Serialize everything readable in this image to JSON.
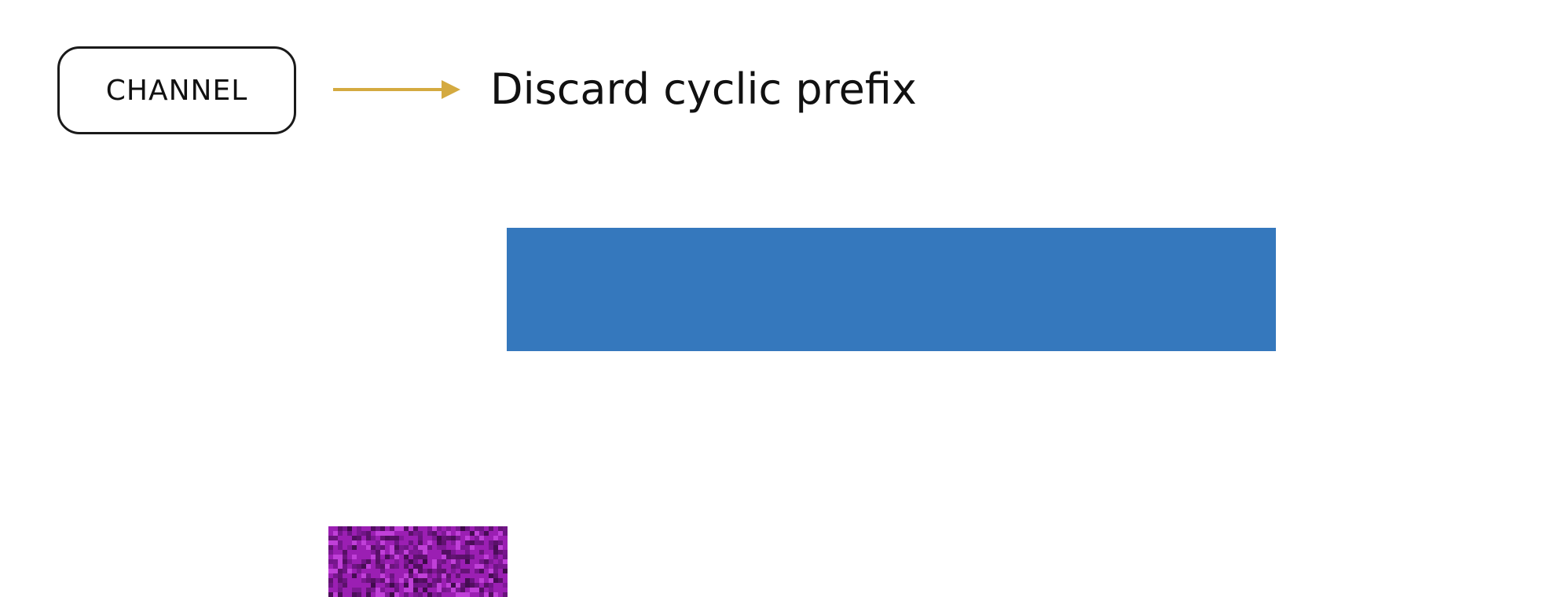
{
  "diagram": {
    "channel_label": "CHANNEL",
    "step_title": "Discard cyclic prefix"
  },
  "colors": {
    "arrow": "#d4aa40",
    "symbol_block": "#3578bd",
    "prefix_block": "#9b1fb3",
    "prefix_block_dark": "#3a0a45",
    "box_border": "#1a1a1a"
  }
}
